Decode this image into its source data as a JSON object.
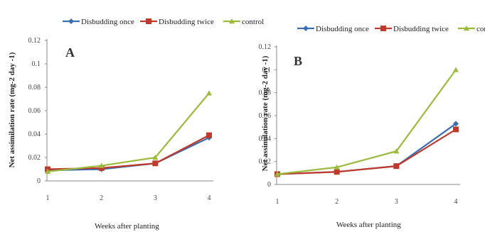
{
  "chart_data": [
    {
      "type": "line",
      "panel_label": "A",
      "x": [
        1,
        2,
        3,
        4
      ],
      "xlabel": "Weeks after planting",
      "ylabel": "Net assimilation rate (mg-2 day -1)",
      "ylim": [
        0,
        0.12
      ],
      "yticks": [
        "0",
        "0.02",
        "0.04",
        "0.06",
        "0.08",
        "0.1",
        "0.12"
      ],
      "xticks": [
        "1",
        "2",
        "3",
        "4"
      ],
      "legend_position": "top",
      "grid": false,
      "series": [
        {
          "name": "Disbudding once",
          "color": "#3a6fb0",
          "marker": "diamond",
          "values": [
            0.009,
            0.01,
            0.015,
            0.037
          ]
        },
        {
          "name": "Disbudding twice",
          "color": "#c0392b",
          "marker": "square",
          "values": [
            0.01,
            0.011,
            0.015,
            0.039
          ]
        },
        {
          "name": "control",
          "color": "#9bbb3c",
          "marker": "triangle",
          "values": [
            0.008,
            0.013,
            0.02,
            0.075
          ]
        }
      ]
    },
    {
      "type": "line",
      "panel_label": "B",
      "x": [
        1,
        2,
        3,
        4
      ],
      "xlabel": "Weeks after planting",
      "ylabel": "Net assimilation rate (mg-2 day -1)",
      "ylim": [
        0,
        0.12
      ],
      "yticks": [
        "0",
        "0.02",
        "0.04",
        "0.06",
        "0.08",
        "0.1",
        "0.12"
      ],
      "xticks": [
        "1",
        "2",
        "3",
        "4"
      ],
      "legend_position": "top",
      "grid": false,
      "series": [
        {
          "name": "Disbudding once",
          "color": "#3a6fb0",
          "marker": "diamond",
          "values": [
            0.009,
            0.011,
            0.016,
            0.053
          ]
        },
        {
          "name": "Disbudding twice",
          "color": "#c0392b",
          "marker": "square",
          "values": [
            0.009,
            0.011,
            0.016,
            0.048
          ]
        },
        {
          "name": "control",
          "color": "#9bbb3c",
          "marker": "triangle",
          "values": [
            0.009,
            0.015,
            0.029,
            0.1
          ]
        }
      ]
    }
  ]
}
